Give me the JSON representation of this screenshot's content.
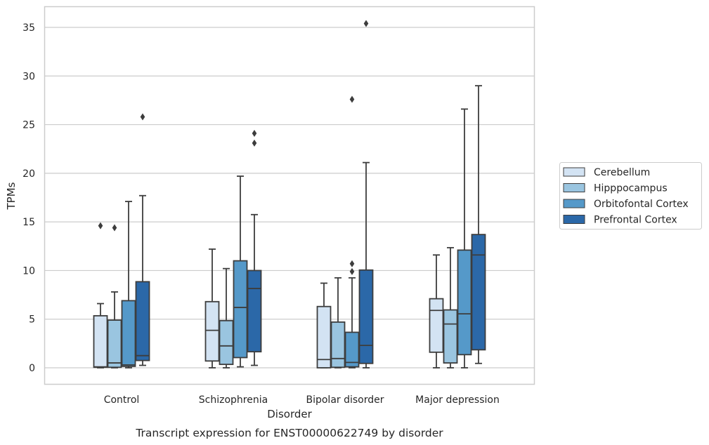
{
  "chart_data": {
    "type": "box",
    "title": "",
    "caption": "Transcript expression for ENST00000622749 by disorder",
    "xlabel": "Disorder",
    "ylabel": "TPMs",
    "ylim": [
      -1.7,
      37.2
    ],
    "yticks": [
      0,
      5,
      10,
      15,
      20,
      25,
      30,
      35
    ],
    "grid": "horizontal",
    "legend_position": "right",
    "categories": [
      "Control",
      "Schizophrenia",
      "Bipolar disorder",
      "Major depression"
    ],
    "series": [
      {
        "name": "Cerebellum",
        "color": "#d3e3f3",
        "boxes": [
          {
            "whisker_low": 0.0,
            "q1": 0.05,
            "median": 0.1,
            "q3": 5.35,
            "whisker_high": 6.6,
            "outliers": [
              14.6
            ]
          },
          {
            "whisker_low": 0.0,
            "q1": 0.7,
            "median": 3.85,
            "q3": 6.8,
            "whisker_high": 12.2,
            "outliers": []
          },
          {
            "whisker_low": 0.0,
            "q1": 0.0,
            "median": 0.85,
            "q3": 6.3,
            "whisker_high": 8.7,
            "outliers": []
          },
          {
            "whisker_low": 0.0,
            "q1": 1.6,
            "median": 5.9,
            "q3": 7.1,
            "whisker_high": 11.6,
            "outliers": []
          }
        ]
      },
      {
        "name": "Hipppocampus",
        "color": "#9ac5e0",
        "boxes": [
          {
            "whisker_low": 0.0,
            "q1": 0.05,
            "median": 0.5,
            "q3": 4.9,
            "whisker_high": 7.8,
            "outliers": [
              14.4
            ]
          },
          {
            "whisker_low": 0.0,
            "q1": 0.35,
            "median": 2.25,
            "q3": 4.85,
            "whisker_high": 10.2,
            "outliers": []
          },
          {
            "whisker_low": 0.0,
            "q1": 0.05,
            "median": 0.95,
            "q3": 4.7,
            "whisker_high": 9.25,
            "outliers": []
          },
          {
            "whisker_low": 0.0,
            "q1": 0.5,
            "median": 4.5,
            "q3": 5.95,
            "whisker_high": 12.35,
            "outliers": []
          }
        ]
      },
      {
        "name": "Orbitofontal Cortex",
        "color": "#5599c9",
        "boxes": [
          {
            "whisker_low": 0.0,
            "q1": 0.15,
            "median": 0.3,
            "q3": 6.9,
            "whisker_high": 17.1,
            "outliers": []
          },
          {
            "whisker_low": 0.1,
            "q1": 1.05,
            "median": 6.2,
            "q3": 11.0,
            "whisker_high": 19.7,
            "outliers": []
          },
          {
            "whisker_low": 0.0,
            "q1": 0.1,
            "median": 0.55,
            "q3": 3.65,
            "whisker_high": 9.25,
            "outliers": [
              9.9,
              10.7,
              27.6
            ]
          },
          {
            "whisker_low": 0.0,
            "q1": 1.35,
            "median": 5.55,
            "q3": 12.1,
            "whisker_high": 26.6,
            "outliers": []
          }
        ]
      },
      {
        "name": "Prefrontal Cortex",
        "color": "#2b68a8",
        "boxes": [
          {
            "whisker_low": 0.25,
            "q1": 0.75,
            "median": 1.25,
            "q3": 8.85,
            "whisker_high": 17.7,
            "outliers": [
              25.8
            ]
          },
          {
            "whisker_low": 0.25,
            "q1": 1.65,
            "median": 8.15,
            "q3": 10.0,
            "whisker_high": 15.75,
            "outliers": [
              23.1,
              24.1
            ]
          },
          {
            "whisker_low": 0.0,
            "q1": 0.45,
            "median": 2.3,
            "q3": 10.05,
            "whisker_high": 21.1,
            "outliers": [
              35.4
            ]
          },
          {
            "whisker_low": 0.45,
            "q1": 1.85,
            "median": 11.6,
            "q3": 13.7,
            "whisker_high": 29.0,
            "outliers": []
          }
        ]
      }
    ]
  }
}
